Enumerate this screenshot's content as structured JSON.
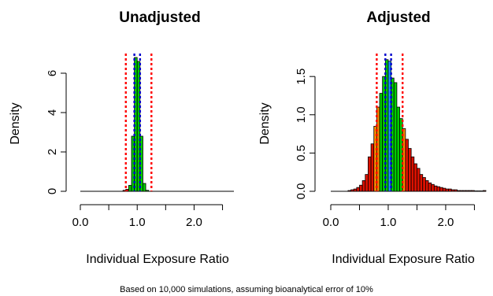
{
  "caption": "Based on 10,000 simulations, assuming bioanalytical error of 10%",
  "colors": {
    "in_range": "#00cc00",
    "outside_range": "#dd1100",
    "near_range": "#ff8800",
    "center_band": "#1e90ff",
    "limit_line": "#ff0000",
    "center_line": "#0000cc"
  },
  "chart_data": [
    {
      "type": "bar",
      "subtype": "histogram",
      "title": "Unadjusted",
      "xlabel": "Individual Exposure Ratio",
      "ylabel": "Density",
      "xlim": [
        0,
        2.7
      ],
      "ylim": [
        0,
        7
      ],
      "xticks": [
        0.0,
        1.0,
        2.0
      ],
      "xtick_labels": [
        "0.0",
        "1.0",
        "2.0"
      ],
      "yticks": [
        0,
        2,
        4,
        6
      ],
      "ytick_labels": [
        "0",
        "2",
        "4",
        "6"
      ],
      "bin_width": 0.05,
      "bin_starts": [
        0.75,
        0.8,
        0.85,
        0.9,
        0.95,
        1.0,
        1.05,
        1.1,
        1.15
      ],
      "density": [
        0.05,
        0.1,
        0.3,
        2.8,
        6.8,
        6.6,
        2.8,
        0.4,
        0.05
      ],
      "bin_colors": [
        "outside_range",
        "outside_range",
        "in_range",
        "in_range",
        "in_range",
        "in_range",
        "in_range",
        "in_range",
        "in_range"
      ],
      "limit_lines": [
        0.8,
        1.25
      ],
      "center_lines": [
        0.95,
        1.05
      ]
    },
    {
      "type": "bar",
      "subtype": "histogram",
      "title": "Adjusted",
      "xlabel": "Individual Exposure Ratio",
      "ylabel": "Density",
      "xlim": [
        0,
        2.7
      ],
      "ylim": [
        0,
        1.8
      ],
      "xticks": [
        0.0,
        1.0,
        2.0
      ],
      "xtick_labels": [
        "0.0",
        "1.0",
        "2.0"
      ],
      "yticks": [
        0.0,
        0.5,
        1.0,
        1.5
      ],
      "ytick_labels": [
        "0.0",
        "0.5",
        "1.0",
        "1.5"
      ],
      "bin_width": 0.05,
      "bin_starts": [
        0.3,
        0.35,
        0.4,
        0.45,
        0.5,
        0.55,
        0.6,
        0.65,
        0.7,
        0.75,
        0.8,
        0.85,
        0.9,
        0.95,
        1.0,
        1.05,
        1.1,
        1.15,
        1.2,
        1.25,
        1.3,
        1.35,
        1.4,
        1.45,
        1.5,
        1.55,
        1.6,
        1.65,
        1.7,
        1.75,
        1.8,
        1.85,
        1.9,
        1.95,
        2.0,
        2.05,
        2.1,
        2.15,
        2.2,
        2.25,
        2.3,
        2.35,
        2.4,
        2.45,
        2.5,
        2.55,
        2.6,
        2.65
      ],
      "density": [
        0.01,
        0.02,
        0.03,
        0.05,
        0.08,
        0.14,
        0.22,
        0.45,
        0.62,
        0.85,
        1.1,
        1.28,
        1.5,
        1.72,
        1.7,
        1.48,
        1.42,
        1.1,
        0.95,
        0.82,
        0.68,
        0.56,
        0.45,
        0.36,
        0.3,
        0.22,
        0.18,
        0.14,
        0.11,
        0.09,
        0.07,
        0.06,
        0.05,
        0.04,
        0.03,
        0.03,
        0.02,
        0.02,
        0.01,
        0.01,
        0.01,
        0.01,
        0.01,
        0.01,
        0.005,
        0.005,
        0.005,
        0.01
      ],
      "bin_colors": [
        "outside_range",
        "outside_range",
        "outside_range",
        "outside_range",
        "outside_range",
        "outside_range",
        "outside_range",
        "outside_range",
        "outside_range",
        "near_range",
        "near_range",
        "in_range",
        "in_range",
        "in_range",
        "center_band",
        "in_range",
        "in_range",
        "in_range",
        "in_range",
        "near_range",
        "outside_range",
        "outside_range",
        "outside_range",
        "outside_range",
        "outside_range",
        "outside_range",
        "outside_range",
        "outside_range",
        "outside_range",
        "outside_range",
        "outside_range",
        "outside_range",
        "outside_range",
        "outside_range",
        "outside_range",
        "outside_range",
        "outside_range",
        "outside_range",
        "outside_range",
        "outside_range",
        "outside_range",
        "outside_range",
        "outside_range",
        "outside_range",
        "outside_range",
        "outside_range",
        "outside_range",
        "outside_range"
      ],
      "limit_lines": [
        0.8,
        1.25
      ],
      "center_lines": [
        0.95,
        1.05
      ]
    }
  ]
}
